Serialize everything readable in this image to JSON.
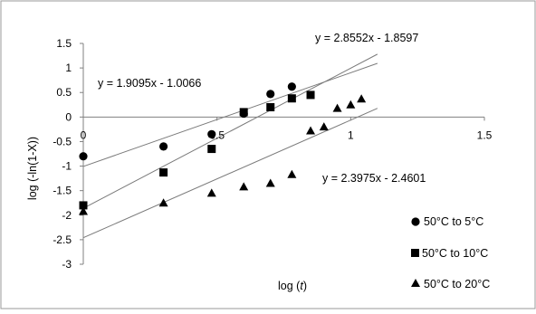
{
  "chart_data": {
    "type": "scatter",
    "title": "",
    "xlabel_prefix": "log (",
    "xlabel_var": "t",
    "xlabel_suffix": ")",
    "ylabel": "log (-ln(1-X))",
    "xlim": [
      0,
      1.5
    ],
    "ylim": [
      -3,
      1.5
    ],
    "xticks": [
      0,
      0.5,
      1,
      1.5
    ],
    "xtick_labels": [
      "0",
      "0.5",
      "1",
      "1.5"
    ],
    "yticks": [
      1.5,
      1,
      0.5,
      0,
      -0.5,
      -1,
      -1.5,
      -2,
      -2.5,
      -3
    ],
    "ytick_labels": [
      "1.5",
      "1",
      "0.5",
      "0",
      "-0.5",
      "-1",
      "-1.5",
      "-2",
      "-2.5",
      "-3"
    ],
    "grid": false,
    "legend_position": "bottom-right",
    "series": [
      {
        "name": "50°C to 5°C",
        "marker": "circle",
        "color": "#000000",
        "x": [
          0.0,
          0.3,
          0.48,
          0.6,
          0.7,
          0.78
        ],
        "y": [
          -0.8,
          -0.6,
          -0.35,
          0.07,
          0.47,
          0.62
        ],
        "fit": {
          "slope": 1.9095,
          "intercept": -1.0066,
          "label": "y = 1.9095x - 1.0066"
        }
      },
      {
        "name": "50°C to 10°C",
        "marker": "square",
        "color": "#000000",
        "x": [
          0.0,
          0.3,
          0.48,
          0.6,
          0.7,
          0.78,
          0.85
        ],
        "y": [
          -1.8,
          -1.13,
          -0.65,
          0.1,
          0.2,
          0.38,
          0.45
        ],
        "fit": {
          "slope": 2.8552,
          "intercept": -1.8597,
          "label": "y = 2.8552x - 1.8597"
        }
      },
      {
        "name": "50°C to 20°C",
        "marker": "triangle",
        "color": "#000000",
        "x": [
          0.0,
          0.3,
          0.48,
          0.6,
          0.7,
          0.78,
          0.85,
          0.9,
          0.95,
          1.0,
          1.04
        ],
        "y": [
          -1.92,
          -1.75,
          -1.55,
          -1.42,
          -1.35,
          -1.17,
          -0.28,
          -0.2,
          0.18,
          0.25,
          0.37
        ],
        "fit": {
          "slope": 2.3975,
          "intercept": -2.4601,
          "label": "y = 2.3975x - 2.4601"
        }
      }
    ]
  }
}
